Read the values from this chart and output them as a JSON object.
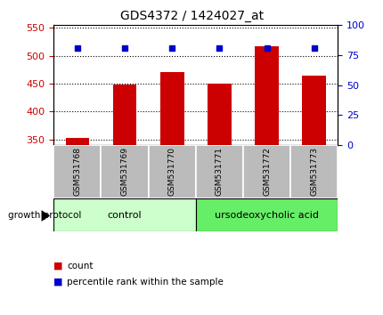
{
  "title": "GDS4372 / 1424027_at",
  "categories": [
    "GSM531768",
    "GSM531769",
    "GSM531770",
    "GSM531771",
    "GSM531772",
    "GSM531773"
  ],
  "bar_values": [
    352,
    448,
    471,
    450,
    517,
    464
  ],
  "percentile_values": [
    81,
    81,
    81,
    81,
    81,
    81
  ],
  "bar_color": "#cc0000",
  "percentile_color": "#0000cc",
  "ylim_left": [
    340,
    555
  ],
  "ylim_right": [
    0,
    100
  ],
  "yticks_left": [
    350,
    400,
    450,
    500,
    550
  ],
  "yticks_right": [
    0,
    25,
    50,
    75,
    100
  ],
  "bar_width": 0.5,
  "group_labels": [
    "control",
    "ursodeoxycholic acid"
  ],
  "group_ranges": [
    [
      0,
      3
    ],
    [
      3,
      6
    ]
  ],
  "group_light_color": "#ccffcc",
  "group_dark_color": "#66ee66",
  "xlabel_area_color": "#bbbbbb",
  "legend_items": [
    "count",
    "percentile rank within the sample"
  ],
  "legend_colors": [
    "#cc0000",
    "#0000cc"
  ],
  "growth_protocol_label": "growth protocol",
  "title_fontsize": 10,
  "tick_fontsize": 8,
  "label_fontsize": 8
}
